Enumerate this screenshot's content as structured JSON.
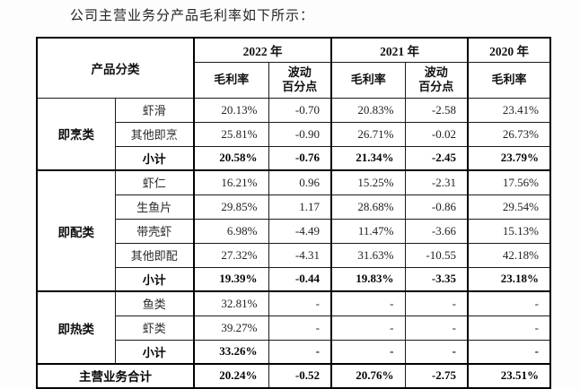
{
  "title": "公司主营业务分产品毛利率如下所示：",
  "table": {
    "header": {
      "category_label": "产品分类",
      "years": [
        "2022 年",
        "2021 年",
        "2020 年"
      ],
      "margin_label": "毛利率",
      "fluct_line1": "波动",
      "fluct_line2": "百分点"
    },
    "groups": [
      {
        "category": "即烹类",
        "rows": [
          {
            "label": "虾滑",
            "values": [
              "20.13%",
              "-0.70",
              "20.83%",
              "-2.58",
              "23.41%"
            ]
          },
          {
            "label": "其他即烹",
            "values": [
              "25.81%",
              "-0.90",
              "26.71%",
              "-0.02",
              "26.73%"
            ]
          },
          {
            "label": "小计",
            "values": [
              "20.58%",
              "-0.76",
              "21.34%",
              "-2.45",
              "23.79%"
            ]
          }
        ]
      },
      {
        "category": "即配类",
        "rows": [
          {
            "label": "虾仁",
            "values": [
              "16.21%",
              "0.96",
              "15.25%",
              "-2.31",
              "17.56%"
            ]
          },
          {
            "label": "生鱼片",
            "values": [
              "29.85%",
              "1.17",
              "28.68%",
              "-0.86",
              "29.54%"
            ]
          },
          {
            "label": "带壳虾",
            "values": [
              "6.98%",
              "-4.49",
              "11.47%",
              "-3.66",
              "15.13%"
            ]
          },
          {
            "label": "其他即配",
            "values": [
              "27.32%",
              "-4.31",
              "31.63%",
              "-10.55",
              "42.18%"
            ]
          },
          {
            "label": "小计",
            "values": [
              "19.39%",
              "-0.44",
              "19.83%",
              "-3.35",
              "23.18%"
            ]
          }
        ]
      },
      {
        "category": "即热类",
        "rows": [
          {
            "label": "鱼类",
            "values": [
              "32.81%",
              "-",
              "-",
              "-",
              "-"
            ]
          },
          {
            "label": "虾类",
            "values": [
              "39.27%",
              "-",
              "-",
              "-",
              "-"
            ]
          },
          {
            "label": "小计",
            "values": [
              "33.26%",
              "-",
              "-",
              "-",
              "-"
            ]
          }
        ]
      }
    ],
    "total": {
      "label": "主营业务合计",
      "values": [
        "20.24%",
        "-0.52",
        "20.76%",
        "-2.75",
        "23.51%"
      ]
    }
  }
}
